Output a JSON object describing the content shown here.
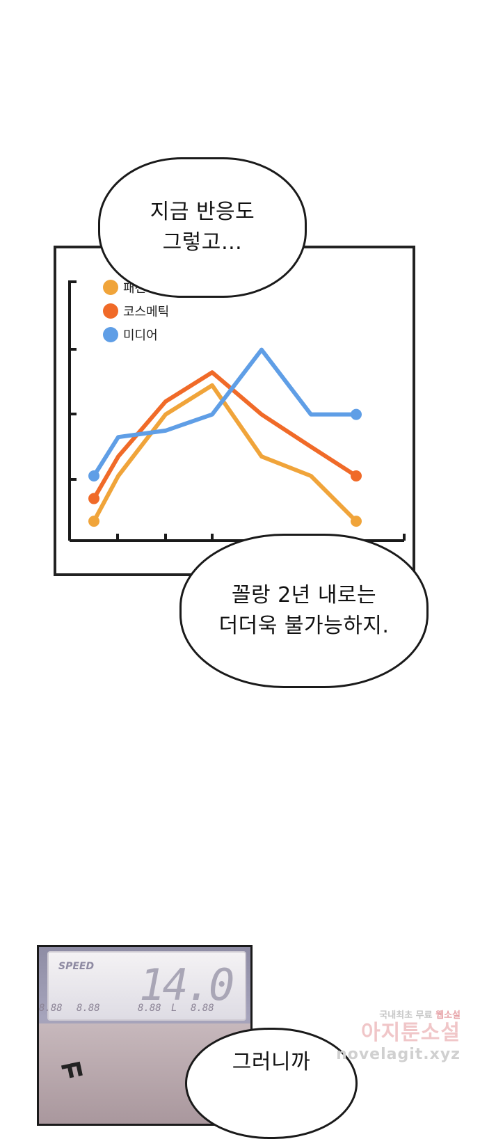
{
  "bubbles": [
    {
      "text": "지금 반응도\n그렇고…"
    },
    {
      "text": "꼴랑 2년 내로는\n더더욱 불가능하지."
    },
    {
      "text": "그러니까"
    }
  ],
  "colors": {
    "fashion": "#f0a43a",
    "cosmetics": "#f06a28",
    "media": "#5f9ee6",
    "ink": "#1a1a1a"
  },
  "chart_data": {
    "type": "line",
    "title": "",
    "xlabel": "",
    "ylabel": "",
    "x": [
      0,
      1,
      2,
      3,
      4,
      5,
      6
    ],
    "ylim": [
      0,
      4
    ],
    "grid": false,
    "legend": "top-left",
    "series": [
      {
        "name": "패션",
        "color": "#f0a43a",
        "values": [
          0.3,
          1.0,
          1.95,
          2.4,
          1.3,
          1.0,
          0.3
        ]
      },
      {
        "name": "코스메틱",
        "color": "#f06a28",
        "values": [
          0.65,
          1.3,
          2.15,
          2.6,
          1.95,
          1.45,
          1.0
        ]
      },
      {
        "name": "미디어",
        "color": "#5f9ee6",
        "values": [
          1.0,
          1.6,
          1.7,
          1.95,
          2.95,
          1.95,
          1.95
        ]
      }
    ]
  },
  "speedometer": {
    "label": "SPEED",
    "value": "14.0",
    "segments": [
      "8.88",
      "8.88",
      "8.88",
      "L",
      "8.88"
    ]
  },
  "sfx": "ㄲ",
  "watermark": {
    "line1_prefix": "국내최초 무료",
    "line1_accent": "웹소설",
    "line2": "아지툰소설",
    "line3": "novelagit.xyz"
  }
}
